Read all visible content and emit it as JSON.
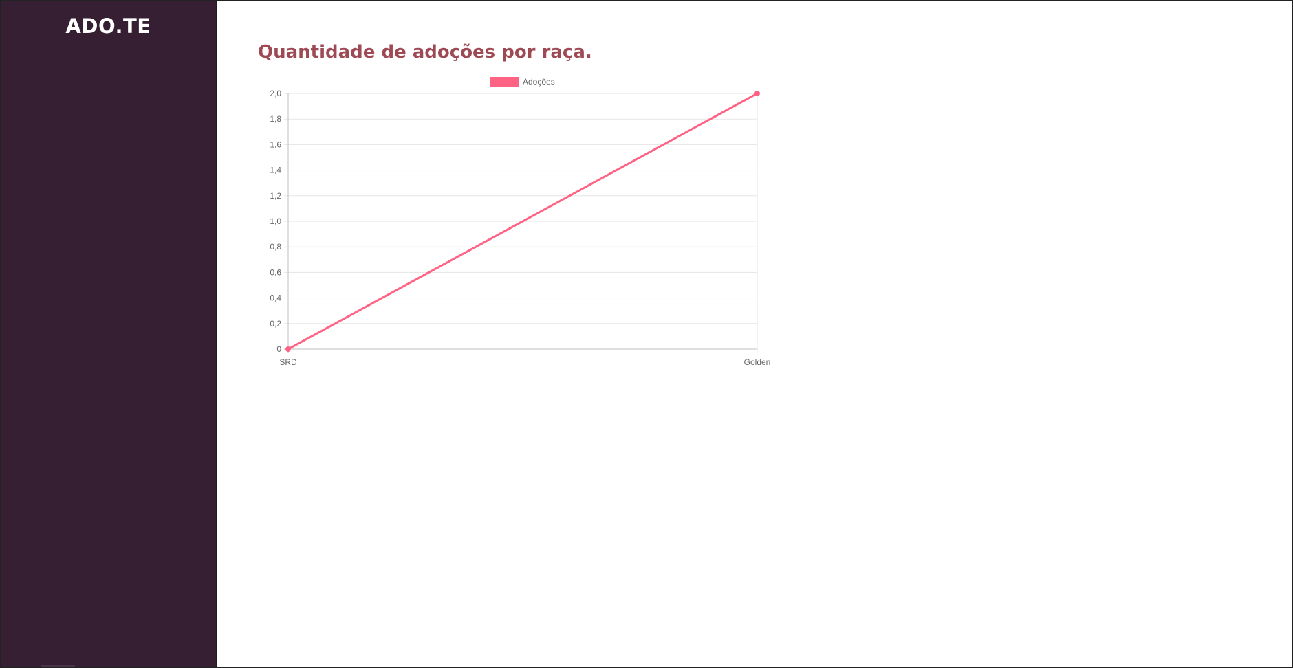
{
  "sidebar": {
    "brand": "ADO.TE"
  },
  "main": {
    "title": "Quantidade de adoções por raça."
  },
  "colors": {
    "sidebar_bg": "#371f33",
    "title": "#9e4a55",
    "series_line": "#ff6384"
  },
  "chart_data": {
    "type": "line",
    "categories": [
      "SRD",
      "Golden"
    ],
    "series": [
      {
        "name": "Adoções",
        "values": [
          0,
          2
        ]
      }
    ],
    "yticks": [
      "0",
      "0,2",
      "0,4",
      "0,6",
      "0,8",
      "1,0",
      "1,2",
      "1,4",
      "1,6",
      "1,8",
      "2,0"
    ],
    "ylim": [
      0,
      2
    ],
    "grid": true,
    "legend_position": "top"
  }
}
